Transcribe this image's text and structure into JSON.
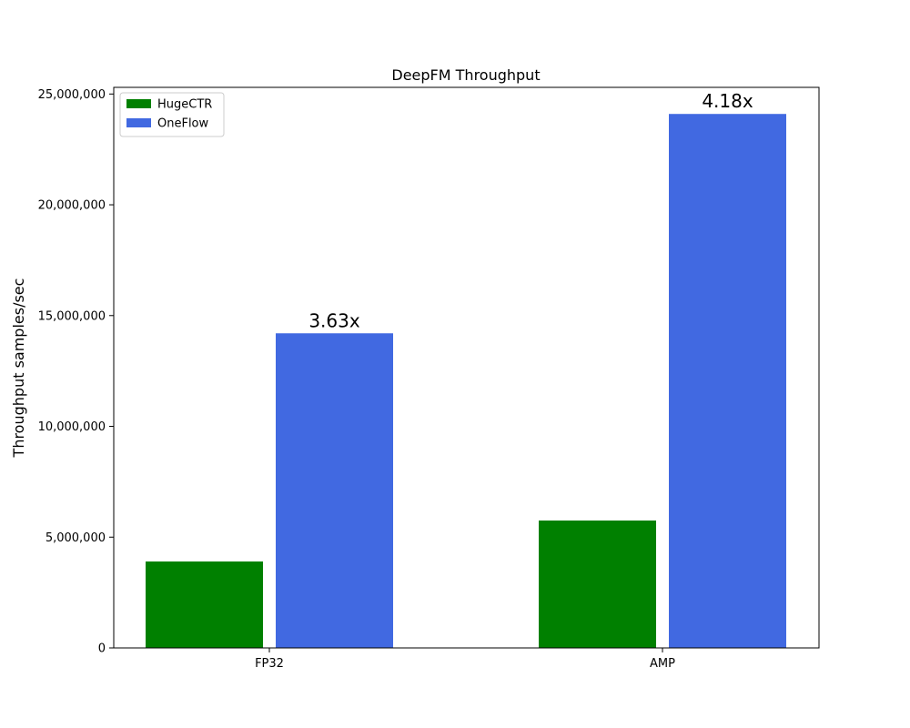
{
  "chart_data": {
    "type": "bar",
    "title": "DeepFM Throughput",
    "xlabel": "",
    "ylabel": "Throughput samples/sec",
    "categories": [
      "FP32",
      "AMP"
    ],
    "ylim": [
      0,
      25300000
    ],
    "yticks": [
      0,
      5000000,
      10000000,
      15000000,
      20000000,
      25000000
    ],
    "ytick_labels": [
      "0",
      "5,000,000",
      "10,000,000",
      "15,000,000",
      "20,000,000",
      "25,000,000"
    ],
    "grid": false,
    "legend_position": "top-left",
    "series": [
      {
        "name": "HugeCTR",
        "color": "#008000",
        "values": [
          3900000,
          5750000
        ]
      },
      {
        "name": "OneFlow",
        "color": "#4169E1",
        "values": [
          14200000,
          24100000
        ],
        "labels": [
          "3.63x",
          "4.18x"
        ]
      }
    ]
  }
}
